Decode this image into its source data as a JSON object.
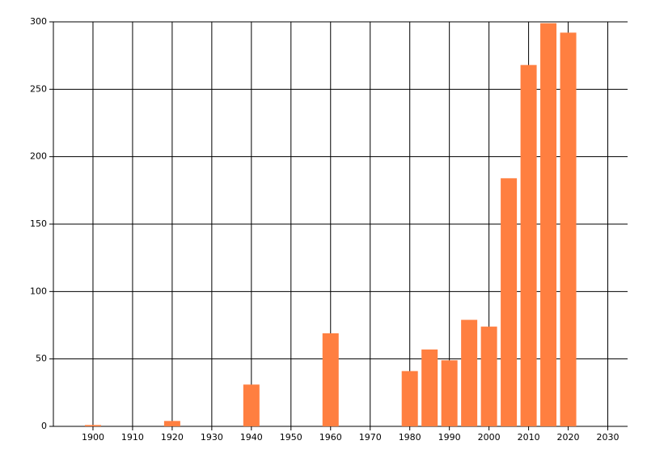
{
  "chart_data": {
    "type": "bar",
    "x": [
      1900,
      1920,
      1940,
      1960,
      1980,
      1985,
      1990,
      1995,
      2000,
      2005,
      2010,
      2015,
      2020
    ],
    "values": [
      1,
      4,
      31,
      69,
      41,
      57,
      49,
      79,
      74,
      184,
      268,
      299,
      292
    ],
    "color": "#ff7f40",
    "xlim": [
      1890,
      2035
    ],
    "xticks": [
      1900,
      1910,
      1920,
      1930,
      1940,
      1950,
      1960,
      1970,
      1980,
      1990,
      2000,
      2010,
      2020,
      2030
    ],
    "ylim": [
      0,
      300
    ],
    "yticks": [
      0,
      50,
      100,
      150,
      200,
      250,
      300
    ],
    "grid": true
  }
}
